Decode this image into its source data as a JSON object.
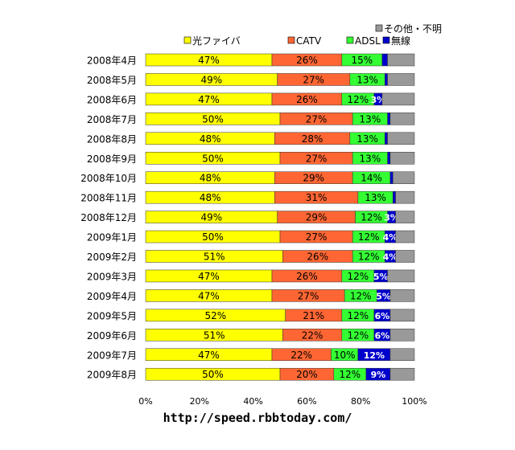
{
  "chart_data": {
    "type": "bar",
    "orientation": "horizontal",
    "stacked": true,
    "categories": [
      "2008年4月",
      "2008年5月",
      "2008年6月",
      "2008年7月",
      "2008年8月",
      "2008年9月",
      "2008年10月",
      "2008年11月",
      "2008年12月",
      "2009年1月",
      "2009年2月",
      "2009年3月",
      "2009年4月",
      "2009年5月",
      "2009年6月",
      "2009年7月",
      "2009年8月"
    ],
    "series": [
      {
        "name": "光ファイバ",
        "color": "#ffff00",
        "values": [
          47,
          49,
          47,
          50,
          48,
          50,
          48,
          48,
          49,
          50,
          51,
          47,
          47,
          52,
          51,
          47,
          50
        ],
        "labels": [
          "47%",
          "49%",
          "47%",
          "50%",
          "48%",
          "50%",
          "48%",
          "48%",
          "49%",
          "50%",
          "51%",
          "47%",
          "47%",
          "52%",
          "51%",
          "47%",
          "50%"
        ]
      },
      {
        "name": "CATV",
        "color": "#ff6633",
        "values": [
          26,
          27,
          26,
          27,
          28,
          27,
          29,
          31,
          29,
          27,
          26,
          26,
          27,
          21,
          22,
          22,
          20
        ],
        "labels": [
          "26%",
          "27%",
          "26%",
          "27%",
          "28%",
          "27%",
          "29%",
          "31%",
          "29%",
          "27%",
          "26%",
          "26%",
          "27%",
          "21%",
          "22%",
          "22%",
          "20%"
        ]
      },
      {
        "name": "ADSL",
        "color": "#33ff33",
        "values": [
          15,
          13,
          12,
          13,
          13,
          13,
          14,
          13,
          12,
          12,
          12,
          12,
          12,
          12,
          12,
          10,
          12
        ],
        "labels": [
          "15%",
          "13%",
          "12%",
          "13%",
          "13%",
          "13%",
          "14%",
          "13%",
          "12%",
          "12%",
          "12%",
          "12%",
          "12%",
          "12%",
          "12%",
          "10%",
          "12%"
        ]
      },
      {
        "name": "無線",
        "color": "#0000cc",
        "values": [
          2,
          1,
          3,
          1,
          1,
          1,
          1,
          1,
          3,
          4,
          4,
          5,
          5,
          6,
          6,
          12,
          9
        ],
        "labels": [
          "",
          "",
          "3%",
          "",
          "",
          "",
          "",
          "",
          "3%",
          "4%",
          "4%",
          "5%",
          "5%",
          "6%",
          "6%",
          "12%",
          "9%"
        ]
      },
      {
        "name": "その他・不明",
        "color": "#999999",
        "values": [
          10,
          10,
          12,
          9,
          10,
          9,
          8,
          7,
          7,
          7,
          7,
          10,
          9,
          9,
          9,
          9,
          9
        ],
        "labels": [
          "",
          "",
          "",
          "",
          "",
          "",
          "",
          "",
          "",
          "",
          "",
          "",
          "",
          "",
          "",
          "",
          ""
        ]
      }
    ],
    "xticks": [
      "0%",
      "20%",
      "40%",
      "60%",
      "80%",
      "100%"
    ],
    "xlim": [
      0,
      100
    ],
    "legend_position": "top-right",
    "grid": false
  },
  "caption": "http://speed.rbbtoday.com/"
}
